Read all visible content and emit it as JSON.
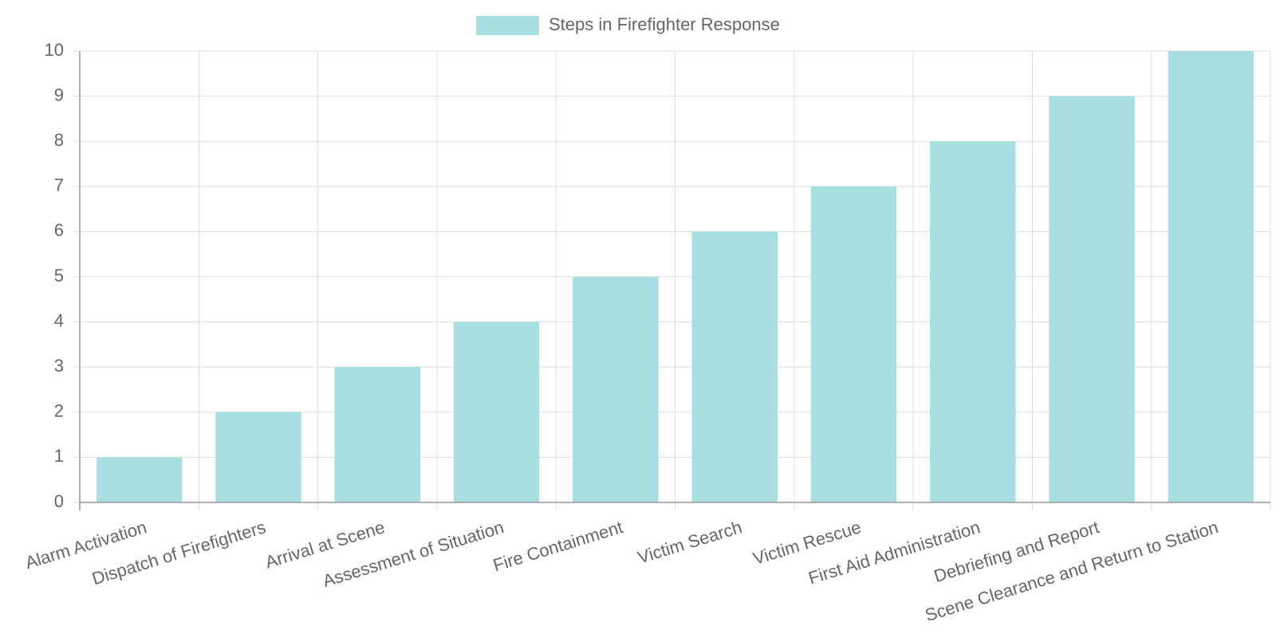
{
  "chart_data": {
    "type": "bar",
    "categories": [
      "Alarm Activation",
      "Dispatch of Firefighters",
      "Arrival at Scene",
      "Assessment of Situation",
      "Fire Containment",
      "Victim Search",
      "Victim Rescue",
      "First Aid Administration",
      "Debriefing and Report",
      "Scene Clearance and Return to Station"
    ],
    "series": [
      {
        "name": "Steps in Firefighter Response",
        "values": [
          1,
          2,
          3,
          4,
          5,
          6,
          7,
          8,
          9,
          10
        ],
        "color": "#a8dfe0"
      }
    ],
    "ylim": [
      0,
      10
    ],
    "yticks": [
      0,
      1,
      2,
      3,
      4,
      5,
      6,
      7,
      8,
      9,
      10
    ],
    "grid": true,
    "legend_position": "top",
    "colors": {
      "bar_fill": "#a8dfe0",
      "grid": "#dddddd",
      "axis": "#999999",
      "text": "#666666"
    }
  }
}
